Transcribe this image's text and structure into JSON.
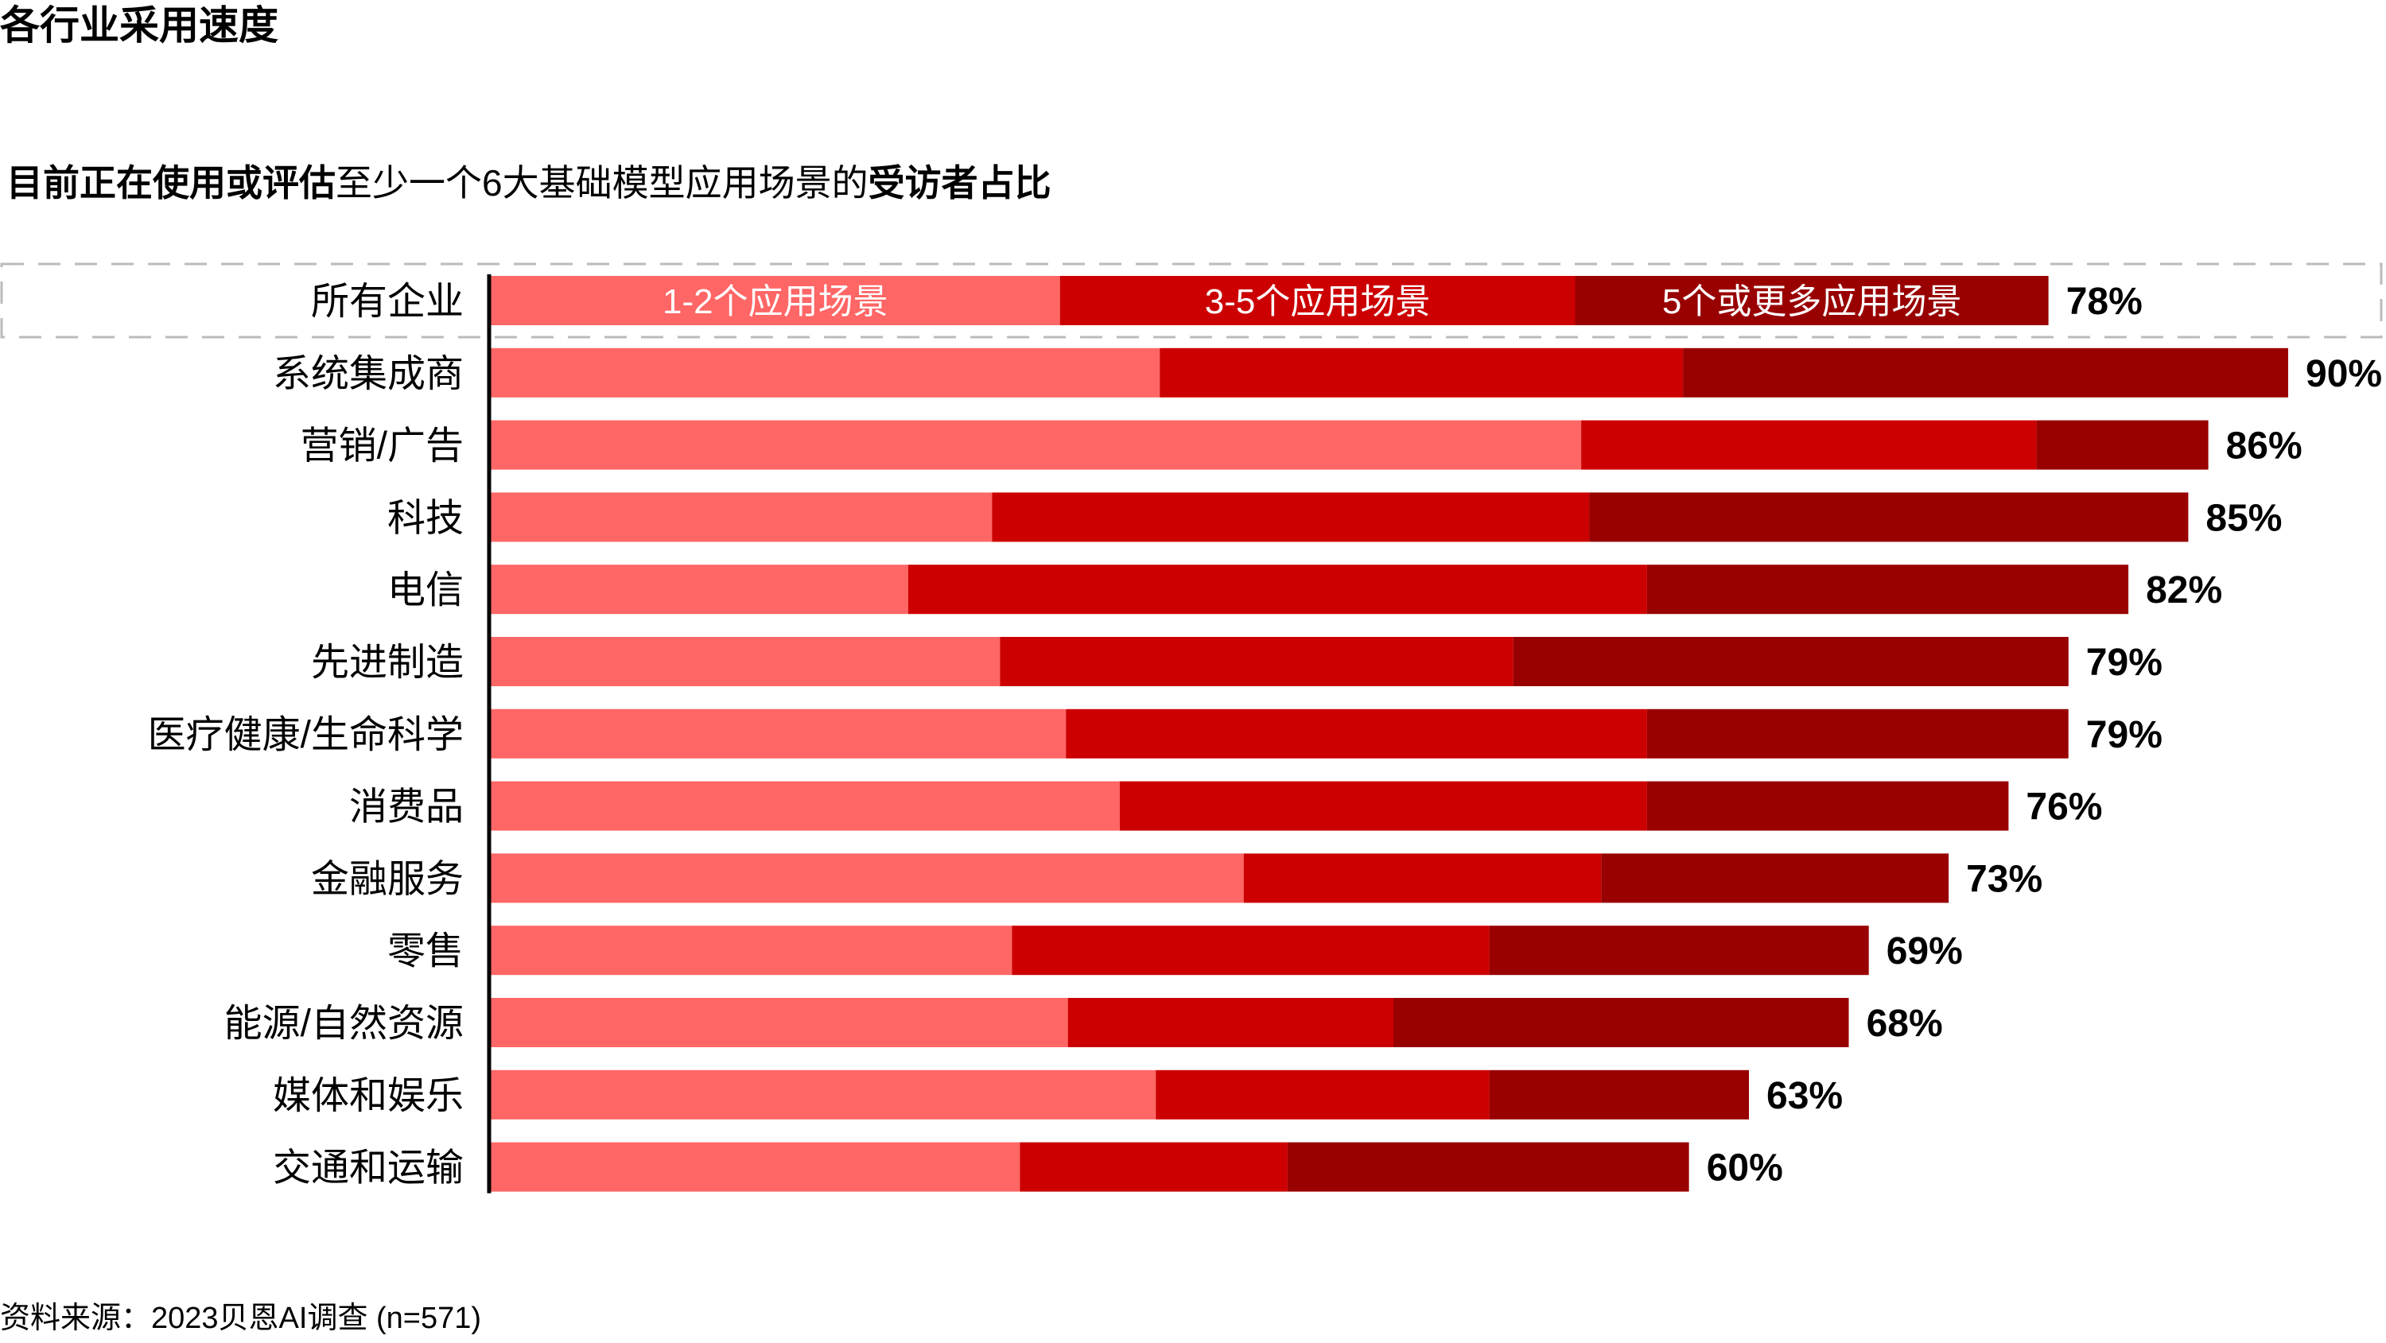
{
  "title": "各行业采用速度",
  "subtitle": {
    "part1": "目前正在使用或评估",
    "part2": "至少一个6大基础模型应用场景的",
    "part3": "受访者占比"
  },
  "source": "资料来源：2023贝恩AI调查 (n=571)",
  "colors": {
    "seg1": "#FF6666",
    "seg2": "#CC0000",
    "seg3": "#990000",
    "axis": "#000000",
    "highlight_border": "#BBBBBB"
  },
  "chart_data": {
    "type": "bar",
    "orientation": "horizontal",
    "stacked": true,
    "xlim": [
      0,
      90
    ],
    "legend_placement": "inside-first-bar",
    "categories": [
      "所有企业",
      "系统集成商",
      "营销/广告",
      "科技",
      "电信",
      "先进制造",
      "医疗健康/生命科学",
      "消费品",
      "金融服务",
      "零售",
      "能源/自然资源",
      "媒体和娱乐",
      "交通和运输"
    ],
    "series": [
      {
        "name": "1-2个应用场景",
        "values": [
          28.5,
          33.5,
          54.6,
          25.1,
          20.9,
          25.5,
          28.8,
          31.5,
          37.7,
          26.1,
          28.9,
          33.3,
          26.5
        ]
      },
      {
        "name": "3-5个应用场景",
        "values": [
          25.8,
          26.2,
          22.8,
          29.9,
          37.0,
          25.7,
          29.1,
          26.4,
          17.9,
          23.9,
          16.3,
          16.7,
          13.4
        ]
      },
      {
        "name": "5个或更多应用场景",
        "values": [
          23.7,
          30.3,
          8.6,
          30.0,
          24.1,
          27.8,
          21.1,
          18.1,
          17.4,
          19.0,
          22.8,
          13.0,
          20.1
        ]
      }
    ],
    "totals": [
      "78%",
      "90%",
      "86%",
      "85%",
      "82%",
      "79%",
      "79%",
      "76%",
      "73%",
      "69%",
      "68%",
      "63%",
      "60%"
    ]
  }
}
